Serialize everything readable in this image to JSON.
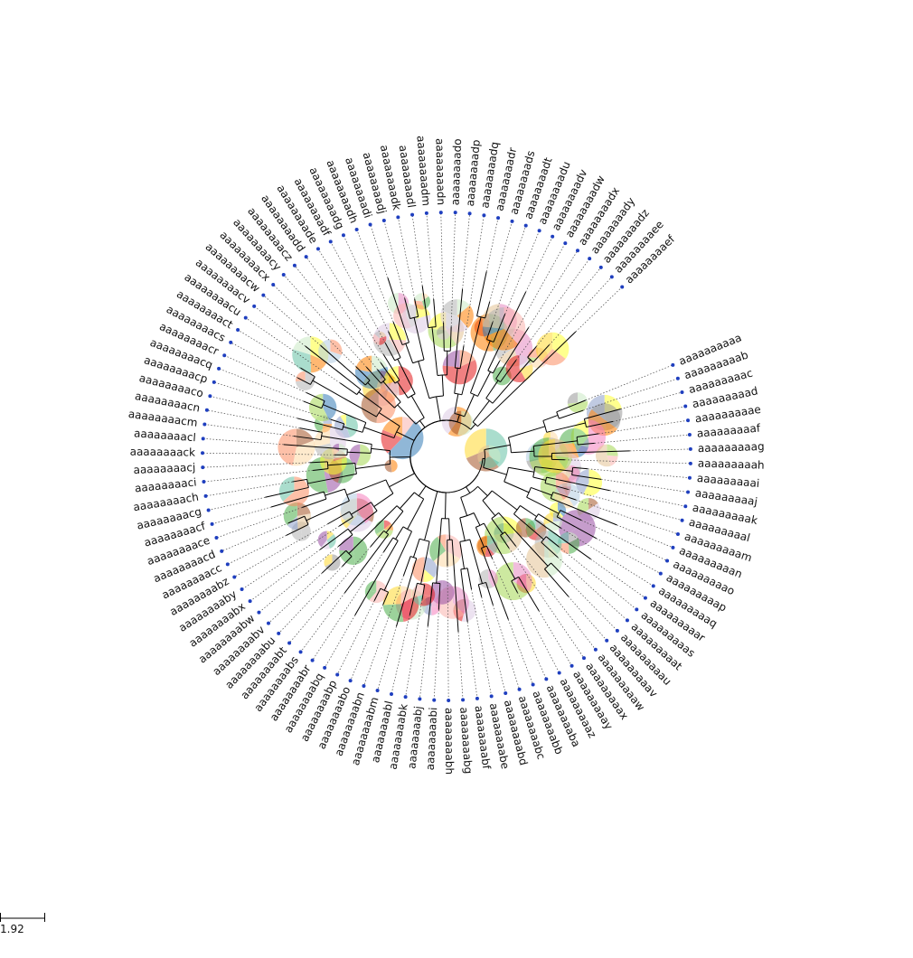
{
  "leaves": [
    "aaaaaaaaaa",
    "aaaaaaaaab",
    "aaaaaaaaac",
    "aaaaaaaaad",
    "aaaaaaaaae",
    "aaaaaaaaaf",
    "aaaaaaaaag",
    "aaaaaaaaah",
    "aaaaaaaaai",
    "aaaaaaaaaj",
    "aaaaaaaaak",
    "aaaaaaaaal",
    "aaaaaaaaam",
    "aaaaaaaaan",
    "aaaaaaaaao",
    "aaaaaaaaap",
    "aaaaaaaaaq",
    "aaaaaaaaar",
    "aaaaaaaaas",
    "aaaaaaaaat",
    "aaaaaaaaau",
    "aaaaaaaaav",
    "aaaaaaaaaw",
    "aaaaaaaaax",
    "aaaaaaaaay",
    "aaaaaaaaaz",
    "aaaaaaaaba",
    "aaaaaaaabb",
    "aaaaaaaabc",
    "aaaaaaaabd",
    "aaaaaaaabe",
    "aaaaaaaabf",
    "aaaaaaaabg",
    "aaaaaaaabh",
    "aaaaaaaabi",
    "aaaaaaaabj",
    "aaaaaaaabk",
    "aaaaaaaabl",
    "aaaaaaaabm",
    "aaaaaaaabn",
    "aaaaaaaabo",
    "aaaaaaaabp",
    "aaaaaaaabq",
    "aaaaaaaabr",
    "aaaaaaaabs",
    "aaaaaaaabt",
    "aaaaaaaabu",
    "aaaaaaaabv",
    "aaaaaaaabw",
    "aaaaaaaabx",
    "aaaaaaaaby",
    "aaaaaaaabz",
    "aaaaaaaacc",
    "aaaaaaaacd",
    "aaaaaaaace",
    "aaaaaaaacf",
    "aaaaaaaacg",
    "aaaaaaaach",
    "aaaaaaaaci",
    "aaaaaaaacj",
    "aaaaaaaack",
    "aaaaaaaacl",
    "aaaaaaaacm",
    "aaaaaaaacn",
    "aaaaaaaaco",
    "aaaaaaaacp",
    "aaaaaaaacq",
    "aaaaaaaacr",
    "aaaaaaaacs",
    "aaaaaaaact",
    "aaaaaaaacu",
    "aaaaaaaacv",
    "aaaaaaaacw",
    "aaaaaaaacx",
    "aaaaaaaacy",
    "aaaaaaaacz",
    "aaaaaaaadd",
    "aaaaaaaade",
    "aaaaaaaadf",
    "aaaaaaaadg",
    "aaaaaaaadh",
    "aaaaaaaadi",
    "aaaaaaaadj",
    "aaaaaaaadk",
    "aaaaaaaadl",
    "aaaaaaaadm",
    "aaaaaaaadn",
    "aaaaaaaado",
    "aaaaaaaadp",
    "aaaaaaaadq",
    "aaaaaaaadr",
    "aaaaaaaads",
    "aaaaaaaadt",
    "aaaaaaaadu",
    "aaaaaaaadv",
    "aaaaaaaadw",
    "aaaaaaaadx",
    "aaaaaaaady",
    "aaaaaaaadz",
    "aaaaaaaaee",
    "aaaaaaaaef"
  ],
  "scale_bar": {
    "label": "1.92"
  },
  "colors": {
    "branch": "#000000",
    "tip": "#1f3fbf",
    "pie_palette": [
      "#e41a1c",
      "#377eb8",
      "#4daf4a",
      "#984ea3",
      "#ff7f00",
      "#ffff33",
      "#a65628",
      "#f781bf",
      "#999999",
      "#66c2a5",
      "#fc8d62",
      "#8da0cb",
      "#e78ac3",
      "#a6d854",
      "#ffd92f",
      "#e5c494",
      "#b3b3b3",
      "#fbb4ae",
      "#b3cde3",
      "#ccebc5",
      "#decbe4",
      "#fed9a6"
    ]
  }
}
